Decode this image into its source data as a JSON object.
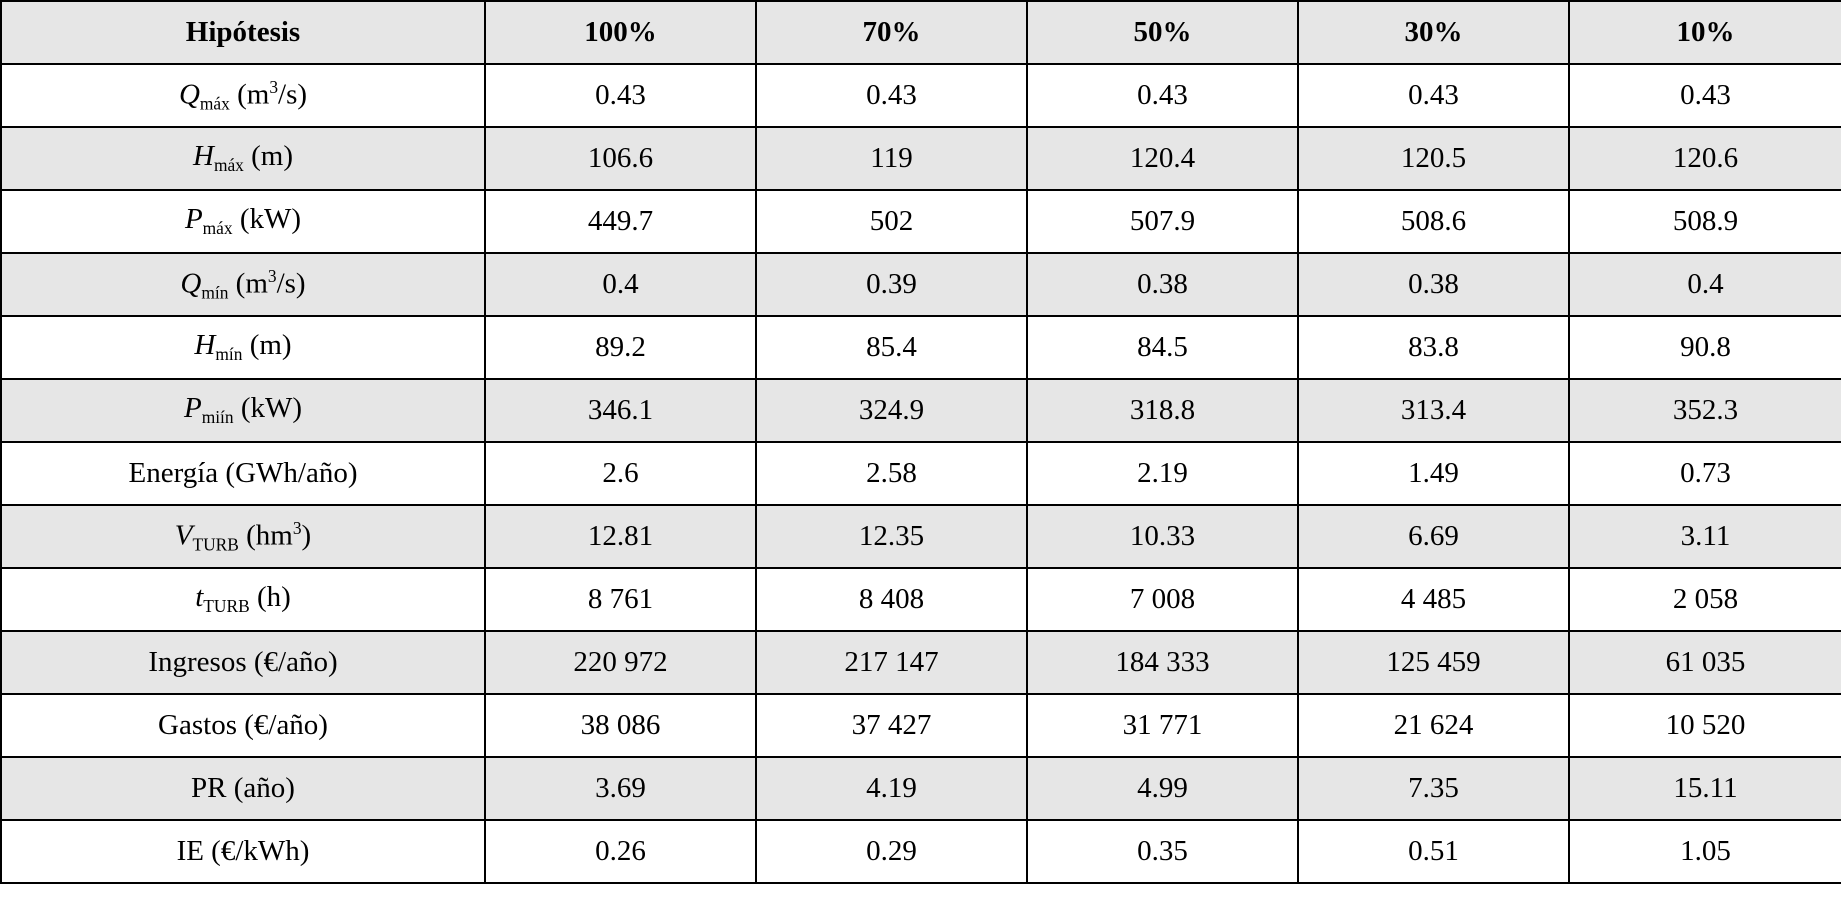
{
  "table": {
    "header": [
      "Hipótesis",
      "100%",
      "70%",
      "50%",
      "30%",
      "10%"
    ],
    "rows": [
      {
        "label": [
          {
            "text": "Q",
            "style": "italic"
          },
          {
            "text": "máx",
            "style": "sub"
          },
          {
            "text": " (m"
          },
          {
            "text": "3",
            "style": "sup"
          },
          {
            "text": "/s)"
          }
        ],
        "cells": [
          "0.43",
          "0.43",
          "0.43",
          "0.43",
          "0.43"
        ]
      },
      {
        "label": [
          {
            "text": "H",
            "style": "italic"
          },
          {
            "text": "máx",
            "style": "sub"
          },
          {
            "text": " (m)"
          }
        ],
        "cells": [
          "106.6",
          "119",
          "120.4",
          "120.5",
          "120.6"
        ]
      },
      {
        "label": [
          {
            "text": "P",
            "style": "italic"
          },
          {
            "text": "máx",
            "style": "sub"
          },
          {
            "text": " (kW)"
          }
        ],
        "cells": [
          "449.7",
          "502",
          "507.9",
          "508.6",
          "508.9"
        ]
      },
      {
        "label": [
          {
            "text": "Q",
            "style": "italic"
          },
          {
            "text": "mín",
            "style": "sub"
          },
          {
            "text": " (m"
          },
          {
            "text": "3",
            "style": "sup"
          },
          {
            "text": "/s)"
          }
        ],
        "cells": [
          "0.4",
          "0.39",
          "0.38",
          "0.38",
          "0.4"
        ]
      },
      {
        "label": [
          {
            "text": "H",
            "style": "italic"
          },
          {
            "text": "mín",
            "style": "sub"
          },
          {
            "text": " (m)"
          }
        ],
        "cells": [
          "89.2",
          "85.4",
          "84.5",
          "83.8",
          "90.8"
        ]
      },
      {
        "label": [
          {
            "text": "P",
            "style": "italic"
          },
          {
            "text": "miín",
            "style": "sub"
          },
          {
            "text": " (kW)"
          }
        ],
        "cells": [
          "346.1",
          "324.9",
          "318.8",
          "313.4",
          "352.3"
        ]
      },
      {
        "label": [
          {
            "text": "Energía (GWh/año)"
          }
        ],
        "cells": [
          "2.6",
          "2.58",
          "2.19",
          "1.49",
          "0.73"
        ]
      },
      {
        "label": [
          {
            "text": "V",
            "style": "italic"
          },
          {
            "text": "TURB",
            "style": "sub"
          },
          {
            "text": " (hm"
          },
          {
            "text": "3",
            "style": "sup"
          },
          {
            "text": ")"
          }
        ],
        "cells": [
          "12.81",
          "12.35",
          "10.33",
          "6.69",
          "3.11"
        ]
      },
      {
        "label": [
          {
            "text": "t",
            "style": "italic"
          },
          {
            "text": "TURB",
            "style": "sub"
          },
          {
            "text": " (h)"
          }
        ],
        "cells": [
          "8 761",
          "8 408",
          "7 008",
          "4 485",
          "2 058"
        ]
      },
      {
        "label": [
          {
            "text": "Ingresos (€/año)"
          }
        ],
        "cells": [
          "220 972",
          "217 147",
          "184 333",
          "125 459",
          "61 035"
        ]
      },
      {
        "label": [
          {
            "text": "Gastos (€/año)"
          }
        ],
        "cells": [
          "38 086",
          "37 427",
          "31 771",
          "21 624",
          "10 520"
        ]
      },
      {
        "label": [
          {
            "text": "PR (año)"
          }
        ],
        "cells": [
          "3.69",
          "4.19",
          "4.99",
          "7.35",
          "15.11"
        ]
      },
      {
        "label": [
          {
            "text": "IE (€/kWh)"
          }
        ],
        "cells": [
          "0.26",
          "0.29",
          "0.35",
          "0.51",
          "1.05"
        ]
      }
    ]
  }
}
